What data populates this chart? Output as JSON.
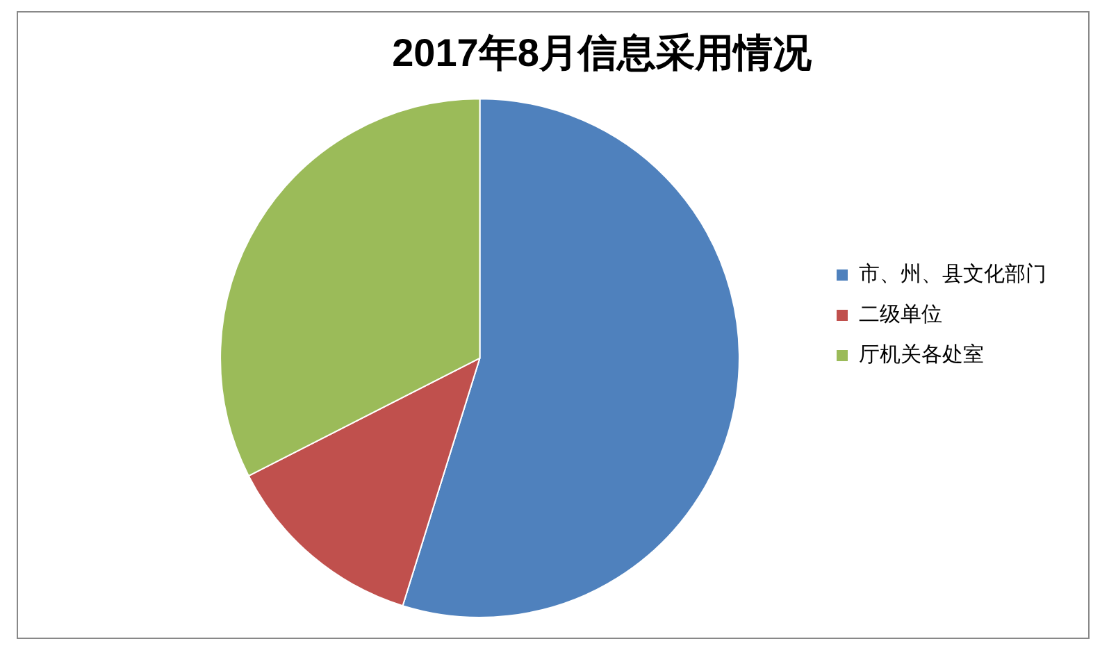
{
  "chart_data": {
    "type": "pie",
    "title": "2017年8月信息采用情况",
    "categories": [
      "市、州、县文化部门",
      "二级单位",
      "厅机关各处室"
    ],
    "values": [
      54.8,
      12.7,
      32.5
    ],
    "colors": [
      "#4f81bd",
      "#c0504d",
      "#9bbb59"
    ],
    "legend": "right"
  }
}
